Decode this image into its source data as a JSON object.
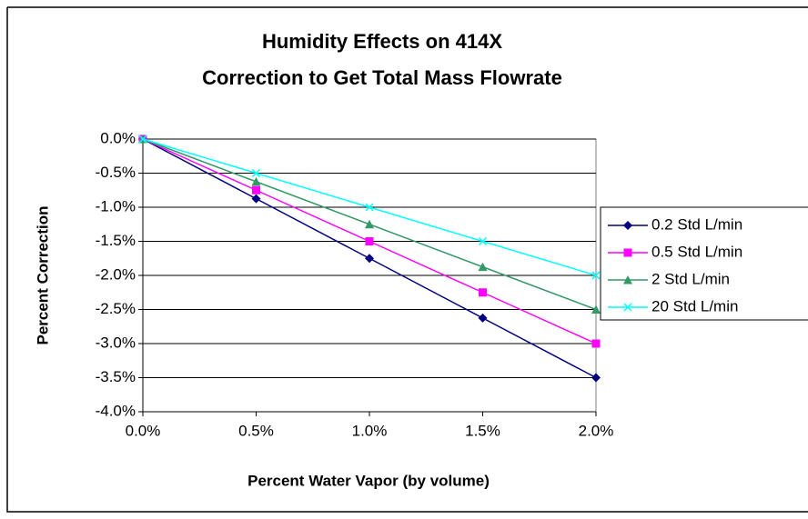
{
  "chart_data": {
    "type": "line",
    "title": [
      "Humidity Effects on 414X",
      "Correction to Get Total Mass Flowrate"
    ],
    "xlabel": "Percent Water Vapor (by volume)",
    "ylabel": "Percent Correction",
    "x": [
      0,
      0.5,
      1.0,
      1.5,
      2.0
    ],
    "series": [
      {
        "name": "0.2 Std L/min",
        "color": "#000080",
        "marker": "diamond",
        "values": [
          0,
          -0.875,
          -1.75,
          -2.625,
          -3.5
        ]
      },
      {
        "name": "0.5 Std L/min",
        "color": "#ff00ff",
        "marker": "square",
        "values": [
          0,
          -0.75,
          -1.5,
          -2.25,
          -3.0
        ]
      },
      {
        "name": "2 Std L/min",
        "color": "#339966",
        "marker": "triangle",
        "values": [
          0,
          -0.625,
          -1.25,
          -1.875,
          -2.5
        ]
      },
      {
        "name": "20 Std L/min",
        "color": "#00ffff",
        "marker": "x",
        "values": [
          0,
          -0.5,
          -1.0,
          -1.5,
          -2.0
        ]
      }
    ],
    "xlim": [
      0,
      2.0
    ],
    "xticks": [
      {
        "value": 0,
        "label": "0.0%"
      },
      {
        "value": 0.5,
        "label": "0.5%"
      },
      {
        "value": 1.0,
        "label": "1.0%"
      },
      {
        "value": 1.5,
        "label": "1.5%"
      },
      {
        "value": 2.0,
        "label": "2.0%"
      }
    ],
    "ylim": [
      -4.0,
      0
    ],
    "yticks": [
      {
        "value": 0,
        "label": "0.0%"
      },
      {
        "value": -0.5,
        "label": "-0.5%"
      },
      {
        "value": -1.0,
        "label": "-1.0%"
      },
      {
        "value": -1.5,
        "label": "-1.5%"
      },
      {
        "value": -2.0,
        "label": "-2.0%"
      },
      {
        "value": -2.5,
        "label": "-2.5%"
      },
      {
        "value": -3.0,
        "label": "-3.0%"
      },
      {
        "value": -3.5,
        "label": "-3.5%"
      },
      {
        "value": -4.0,
        "label": "-4.0%"
      }
    ],
    "grid": true,
    "legend": "right"
  }
}
